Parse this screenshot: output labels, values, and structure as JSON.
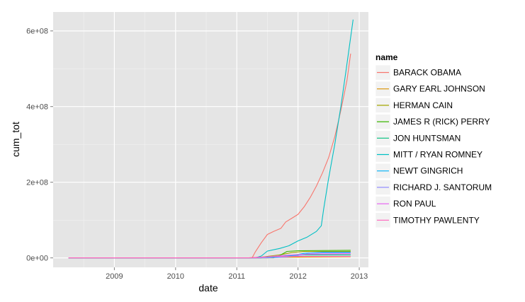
{
  "chart_data": {
    "type": "line",
    "xlabel": "date",
    "ylabel": "cum_tot",
    "xlim": [
      2008.0,
      2013.15
    ],
    "ylim": [
      -25000000,
      650000000
    ],
    "x_ticks": [
      2009,
      2010,
      2011,
      2012,
      2013
    ],
    "x_tick_labels": [
      "2009",
      "2010",
      "2011",
      "2012",
      "2013"
    ],
    "y_ticks": [
      0,
      200000000,
      400000000,
      600000000
    ],
    "y_tick_labels": [
      "0e+00",
      "2e+08",
      "4e+08",
      "6e+08"
    ],
    "grid": true,
    "legend": {
      "title": "name",
      "position": "right"
    },
    "series": [
      {
        "name": "BARACK OBAMA",
        "color": "#F8766D",
        "points": [
          [
            2008.25,
            0
          ],
          [
            2011.25,
            0
          ],
          [
            2011.3,
            15000000
          ],
          [
            2011.4,
            40000000
          ],
          [
            2011.5,
            62000000
          ],
          [
            2011.6,
            70000000
          ],
          [
            2011.72,
            78000000
          ],
          [
            2011.8,
            95000000
          ],
          [
            2011.9,
            105000000
          ],
          [
            2012.0,
            115000000
          ],
          [
            2012.1,
            135000000
          ],
          [
            2012.2,
            160000000
          ],
          [
            2012.3,
            190000000
          ],
          [
            2012.4,
            225000000
          ],
          [
            2012.5,
            265000000
          ],
          [
            2012.6,
            320000000
          ],
          [
            2012.7,
            390000000
          ],
          [
            2012.8,
            470000000
          ],
          [
            2012.86,
            540000000
          ]
        ]
      },
      {
        "name": "GARY EARL JOHNSON",
        "color": "#D89000",
        "points": [
          [
            2008.25,
            0
          ],
          [
            2011.5,
            0
          ],
          [
            2011.6,
            1000000
          ],
          [
            2012.0,
            2000000
          ],
          [
            2012.86,
            3000000
          ]
        ]
      },
      {
        "name": "HERMAN CAIN",
        "color": "#A3A500",
        "points": [
          [
            2008.25,
            0
          ],
          [
            2011.2,
            0
          ],
          [
            2011.4,
            2000000
          ],
          [
            2011.7,
            8000000
          ],
          [
            2011.9,
            14000000
          ],
          [
            2012.1,
            17000000
          ],
          [
            2012.86,
            17000000
          ]
        ]
      },
      {
        "name": "JAMES R (RICK) PERRY",
        "color": "#39B600",
        "points": [
          [
            2008.25,
            0
          ],
          [
            2011.6,
            0
          ],
          [
            2011.72,
            8000000
          ],
          [
            2011.82,
            17000000
          ],
          [
            2012.0,
            19000000
          ],
          [
            2012.86,
            20000000
          ]
        ]
      },
      {
        "name": "JON HUNTSMAN",
        "color": "#00BF7D",
        "points": [
          [
            2008.25,
            0
          ],
          [
            2011.4,
            0
          ],
          [
            2011.6,
            3000000
          ],
          [
            2011.9,
            6000000
          ],
          [
            2012.1,
            8000000
          ],
          [
            2012.86,
            8000000
          ]
        ]
      },
      {
        "name": "MITT / RYAN ROMNEY",
        "color": "#00BFC4",
        "points": [
          [
            2008.25,
            0
          ],
          [
            2011.3,
            0
          ],
          [
            2011.4,
            5000000
          ],
          [
            2011.5,
            18000000
          ],
          [
            2011.7,
            25000000
          ],
          [
            2011.85,
            32000000
          ],
          [
            2012.0,
            45000000
          ],
          [
            2012.15,
            55000000
          ],
          [
            2012.3,
            70000000
          ],
          [
            2012.38,
            85000000
          ],
          [
            2012.42,
            130000000
          ],
          [
            2012.5,
            210000000
          ],
          [
            2012.6,
            300000000
          ],
          [
            2012.7,
            400000000
          ],
          [
            2012.78,
            490000000
          ],
          [
            2012.84,
            560000000
          ],
          [
            2012.9,
            630000000
          ]
        ]
      },
      {
        "name": "NEWT GINGRICH",
        "color": "#00B0F6",
        "points": [
          [
            2008.25,
            0
          ],
          [
            2011.4,
            0
          ],
          [
            2011.6,
            2000000
          ],
          [
            2011.9,
            6000000
          ],
          [
            2012.1,
            12000000
          ],
          [
            2012.4,
            15000000
          ],
          [
            2012.86,
            15000000
          ]
        ]
      },
      {
        "name": "RICHARD J. SANTORUM",
        "color": "#9590FF",
        "points": [
          [
            2008.25,
            0
          ],
          [
            2011.5,
            0
          ],
          [
            2011.8,
            2000000
          ],
          [
            2012.0,
            6000000
          ],
          [
            2012.2,
            12000000
          ],
          [
            2012.4,
            13000000
          ],
          [
            2012.86,
            13000000
          ]
        ]
      },
      {
        "name": "RON PAUL",
        "color": "#E76BF3",
        "points": [
          [
            2008.25,
            0
          ],
          [
            2011.3,
            0
          ],
          [
            2011.5,
            3000000
          ],
          [
            2011.8,
            7000000
          ],
          [
            2012.0,
            9000000
          ],
          [
            2012.3,
            10000000
          ],
          [
            2012.86,
            11000000
          ]
        ]
      },
      {
        "name": "TIMOTHY PAWLENTY",
        "color": "#FF62BC",
        "points": [
          [
            2008.25,
            0
          ],
          [
            2011.2,
            0
          ],
          [
            2011.4,
            2000000
          ],
          [
            2011.6,
            4000000
          ],
          [
            2012.86,
            4000000
          ]
        ]
      }
    ]
  }
}
